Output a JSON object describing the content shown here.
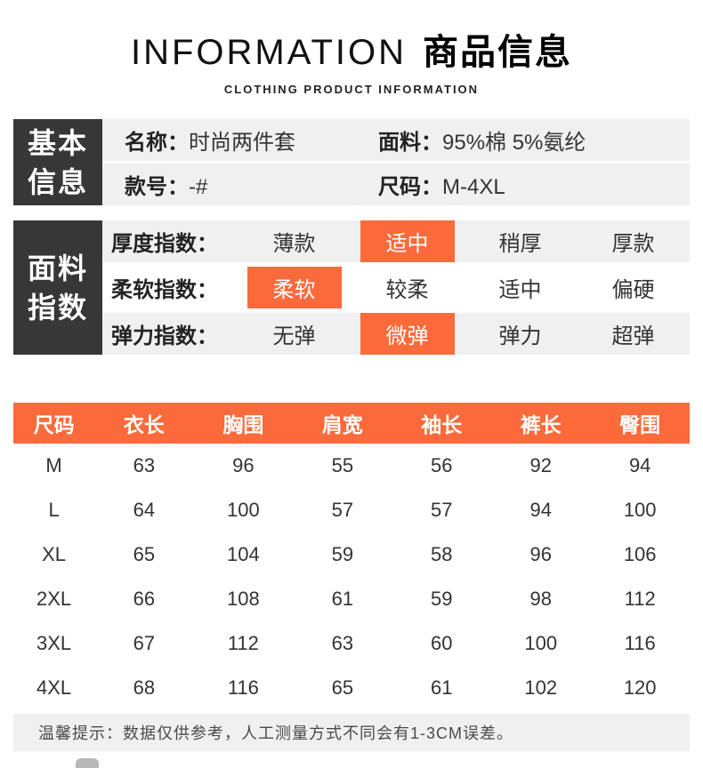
{
  "header": {
    "title_en": "INFORMATION",
    "title_zh": "商品信息",
    "subtitle": "CLOTHING PRODUCT INFORMATION"
  },
  "basic_info": {
    "side_label_lines": [
      "基本",
      "信息"
    ],
    "fields": [
      {
        "label": "名称：",
        "value": "时尚两件套"
      },
      {
        "label": "面料：",
        "value": "95%棉 5%氨纶"
      },
      {
        "label": "款号：",
        "value": "-#"
      },
      {
        "label": "尺码：",
        "value": "M-4XL"
      }
    ]
  },
  "fabric_index": {
    "side_label_lines": [
      "面料",
      "指数"
    ],
    "rows": [
      {
        "label": "厚度指数：",
        "options": [
          "薄款",
          "适中",
          "稍厚",
          "厚款"
        ],
        "selected_index": 1
      },
      {
        "label": "柔软指数：",
        "options": [
          "柔软",
          "较柔",
          "适中",
          "偏硬"
        ],
        "selected_index": 0
      },
      {
        "label": "弹力指数：",
        "options": [
          "无弹",
          "微弹",
          "弹力",
          "超弹"
        ],
        "selected_index": 1
      }
    ]
  },
  "size_table": {
    "columns": [
      "尺码",
      "衣长",
      "胸围",
      "肩宽",
      "袖长",
      "裤长",
      "臀围"
    ],
    "rows": [
      [
        "M",
        "63",
        "96",
        "55",
        "56",
        "92",
        "94"
      ],
      [
        "L",
        "64",
        "100",
        "57",
        "57",
        "94",
        "100"
      ],
      [
        "XL",
        "65",
        "104",
        "59",
        "58",
        "96",
        "106"
      ],
      [
        "2XL",
        "66",
        "108",
        "61",
        "59",
        "98",
        "112"
      ],
      [
        "3XL",
        "67",
        "112",
        "63",
        "60",
        "100",
        "116"
      ],
      [
        "4XL",
        "68",
        "116",
        "65",
        "61",
        "102",
        "120"
      ]
    ],
    "note": "温馨提示：数据仅供参考，人工测量方式不同会有1-3CM误差。"
  },
  "colors": {
    "accent": "#fb6a3b",
    "dark": "#373737",
    "row_gray": "#f0f0f0"
  }
}
